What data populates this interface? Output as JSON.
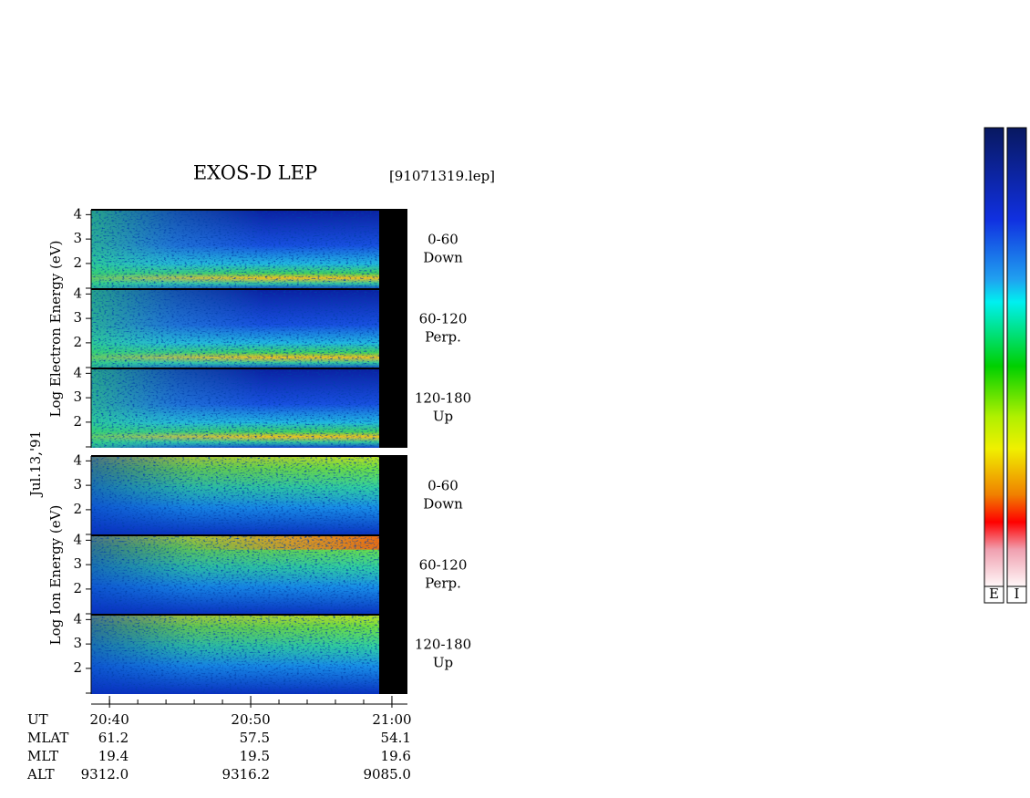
{
  "title": "EXOS-D LEP",
  "file": "[91071319.lep]",
  "date": "Jul.13,'91",
  "energy_axis": {
    "ylim": [
      0.95,
      4.2
    ],
    "yticks": [
      2,
      3,
      4
    ]
  },
  "time_axis": {
    "xlim": [
      1238.7,
      1261.1
    ],
    "xticks": [
      {
        "value": 1240,
        "label": "20:40"
      },
      {
        "value": 1250,
        "label": "20:50"
      },
      {
        "value": 1260,
        "label": "21:00"
      }
    ]
  },
  "groups": [
    {
      "label": "Log  Electron  Energy (eV)",
      "species": "electron",
      "panels": [
        {
          "angle": "0-60",
          "direction": "Down"
        },
        {
          "angle": "60-120",
          "direction": "Perp."
        },
        {
          "angle": "120-180",
          "direction": "Up"
        }
      ]
    },
    {
      "label": "Log  Ion  Energy (eV)",
      "species": "ion",
      "panels": [
        {
          "angle": "0-60",
          "direction": "Down"
        },
        {
          "angle": "60-120",
          "direction": "Perp."
        },
        {
          "angle": "120-180",
          "direction": "Up"
        }
      ]
    }
  ],
  "ephemeris": [
    {
      "name": "UT"
    },
    {
      "name": "MLAT",
      "values": [
        "61.2",
        "57.5",
        "54.1"
      ]
    },
    {
      "name": "MLT",
      "values": [
        "19.4",
        "19.5",
        "19.6"
      ]
    },
    {
      "name": "ALT",
      "values": [
        "9312.0",
        "9316.2",
        "9085.0"
      ]
    }
  ],
  "colorbars": [
    "E",
    "I"
  ]
}
